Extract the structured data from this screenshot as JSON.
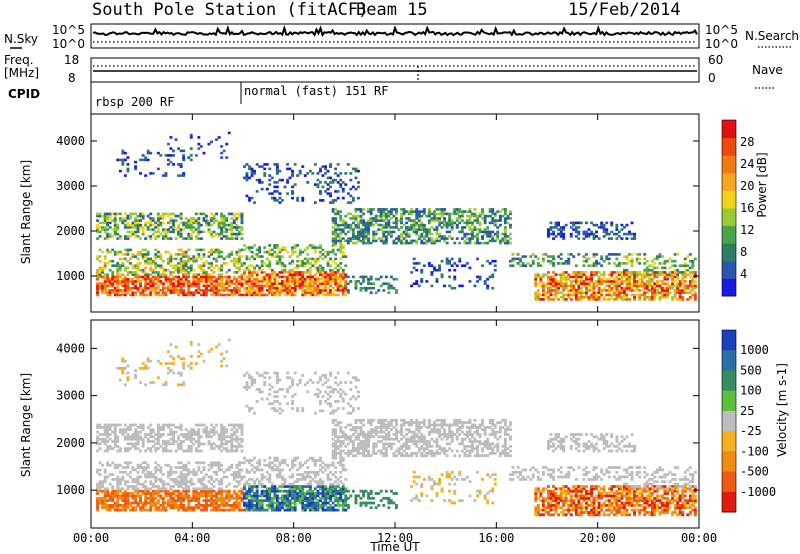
{
  "header": {
    "station": "South Pole Station (fitACF)",
    "beam": "Beam 15",
    "date": "15/Feb/2014"
  },
  "strip": {
    "nsky_label": "N.Sky",
    "nsky_ticks": [
      "10^5",
      "10^0"
    ],
    "nsearch_label": "N.Search",
    "nsearch_ticks": [
      "10^5",
      "10^0"
    ],
    "freq_label_1": "Freq.",
    "freq_label_2": "[MHz]",
    "freq_ticks": [
      "18",
      "8"
    ],
    "nave_label": "Nave",
    "nave_ticks": [
      "60",
      "0"
    ],
    "cpid_label": "CPID",
    "cpid_segments": [
      {
        "label": "rbsp 200 RF",
        "start_hour": 0
      },
      {
        "label": "normal (fast) 151 RF",
        "start_hour": 6
      }
    ]
  },
  "chart_data": [
    {
      "type": "heatmap",
      "xlabel": "",
      "ylabel": "Slant Range [km]",
      "y_ticks": [
        "1000",
        "2000",
        "3000",
        "4000"
      ],
      "ylim": [
        200,
        4600
      ],
      "xlim_hours": [
        0,
        24
      ],
      "colorbar": {
        "label": "Power [dB]",
        "ticks": [
          "4",
          "8",
          "12",
          "16",
          "20",
          "24",
          "28"
        ],
        "colors": [
          "#1919e0",
          "#2a55b0",
          "#2f7c66",
          "#4aa24a",
          "#99cc33",
          "#f2d21a",
          "#f5a623",
          "#f27a12",
          "#ee4a10",
          "#e01010"
        ]
      }
    },
    {
      "type": "heatmap",
      "xlabel": "Time UT",
      "ylabel": "Slant Range [km]",
      "y_ticks": [
        "1000",
        "2000",
        "3000",
        "4000"
      ],
      "ylim": [
        200,
        4600
      ],
      "xlim_hours": [
        0,
        24
      ],
      "x_ticks": [
        "00:00",
        "04:00",
        "08:00",
        "12:00",
        "16:00",
        "20:00",
        "00:00"
      ],
      "colorbar": {
        "label": "Velocity [m s-1]",
        "ticks": [
          "1000",
          "500",
          "100",
          "25",
          "-25",
          "-100",
          "-500",
          "-1000"
        ],
        "colors": [
          "#1a3fc0",
          "#2a6fa8",
          "#3a8a64",
          "#5abf3a",
          "#bdbdbd",
          "#f5b020",
          "#f08a10",
          "#ef5a12",
          "#e01a12"
        ]
      }
    }
  ]
}
